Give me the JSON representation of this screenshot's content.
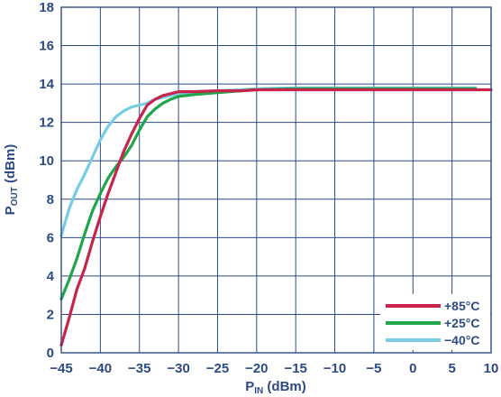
{
  "chart_data": {
    "type": "line",
    "xlabel": {
      "main": "P",
      "sub": "IN",
      "unit": " (dBm)"
    },
    "ylabel": {
      "main": "P",
      "sub": "OUT",
      "unit": " (dBm)"
    },
    "xlim": [
      -45,
      10
    ],
    "ylim": [
      0,
      18
    ],
    "x_ticks": [
      -45,
      -40,
      -35,
      -30,
      -25,
      -20,
      -15,
      -10,
      -5,
      0,
      5,
      10
    ],
    "x_tick_labels": [
      "−45",
      "−40",
      "−35",
      "−30",
      "−25",
      "−20",
      "−15",
      "−10",
      "−5",
      "0",
      "5",
      "10"
    ],
    "y_ticks": [
      0,
      2,
      4,
      6,
      8,
      10,
      12,
      14,
      16,
      18
    ],
    "y_tick_labels": [
      "0",
      "2",
      "4",
      "6",
      "8",
      "10",
      "12",
      "14",
      "16",
      "18"
    ],
    "grid": true,
    "legend_position": "bottom-right",
    "series": [
      {
        "name": "+85°C",
        "color": "#c8234a",
        "points": [
          [
            -45,
            0.4
          ],
          [
            -44,
            1.8
          ],
          [
            -43,
            3.3
          ],
          [
            -42,
            4.4
          ],
          [
            -41,
            5.8
          ],
          [
            -40,
            7.1
          ],
          [
            -39,
            8.3
          ],
          [
            -38,
            9.4
          ],
          [
            -37,
            10.5
          ],
          [
            -36,
            11.4
          ],
          [
            -35,
            12.2
          ],
          [
            -34,
            12.9
          ],
          [
            -33,
            13.2
          ],
          [
            -32,
            13.4
          ],
          [
            -31,
            13.5
          ],
          [
            -30,
            13.6
          ],
          [
            -28,
            13.6
          ],
          [
            -25,
            13.65
          ],
          [
            -22,
            13.65
          ],
          [
            -20,
            13.7
          ],
          [
            -15,
            13.7
          ],
          [
            -10,
            13.7
          ],
          [
            -5,
            13.7
          ],
          [
            0,
            13.7
          ],
          [
            5,
            13.7
          ],
          [
            10,
            13.7
          ]
        ]
      },
      {
        "name": "+25°C",
        "color": "#1fa54a",
        "points": [
          [
            -45,
            2.8
          ],
          [
            -44,
            3.8
          ],
          [
            -43,
            4.9
          ],
          [
            -42,
            6.2
          ],
          [
            -41,
            7.4
          ],
          [
            -40,
            8.3
          ],
          [
            -39,
            9.1
          ],
          [
            -38,
            9.7
          ],
          [
            -37,
            10.2
          ],
          [
            -36,
            10.8
          ],
          [
            -35,
            11.6
          ],
          [
            -34,
            12.3
          ],
          [
            -33,
            12.7
          ],
          [
            -32,
            13.0
          ],
          [
            -31,
            13.2
          ],
          [
            -30,
            13.35
          ],
          [
            -28,
            13.45
          ],
          [
            -25,
            13.55
          ],
          [
            -22,
            13.65
          ],
          [
            -20,
            13.7
          ],
          [
            -15,
            13.75
          ],
          [
            -10,
            13.75
          ],
          [
            -5,
            13.75
          ],
          [
            0,
            13.75
          ],
          [
            5,
            13.75
          ],
          [
            8,
            13.75
          ]
        ]
      },
      {
        "name": "−40°C",
        "color": "#77cde3",
        "points": [
          [
            -45,
            6.1
          ],
          [
            -44,
            7.5
          ],
          [
            -43,
            8.5
          ],
          [
            -42,
            9.3
          ],
          [
            -41,
            10.2
          ],
          [
            -40,
            11.1
          ],
          [
            -39,
            11.8
          ],
          [
            -38,
            12.3
          ],
          [
            -37,
            12.6
          ],
          [
            -36,
            12.8
          ],
          [
            -35,
            12.9
          ],
          [
            -34,
            13.0
          ],
          [
            -33,
            13.2
          ],
          [
            -32,
            13.3
          ],
          [
            -31,
            13.4
          ],
          [
            -30,
            13.5
          ],
          [
            -28,
            13.6
          ],
          [
            -25,
            13.65
          ],
          [
            -22,
            13.7
          ],
          [
            -20,
            13.75
          ],
          [
            -15,
            13.8
          ],
          [
            -10,
            13.8
          ],
          [
            -5,
            13.8
          ],
          [
            0,
            13.8
          ],
          [
            5,
            13.8
          ],
          [
            8,
            13.8
          ]
        ]
      }
    ]
  }
}
